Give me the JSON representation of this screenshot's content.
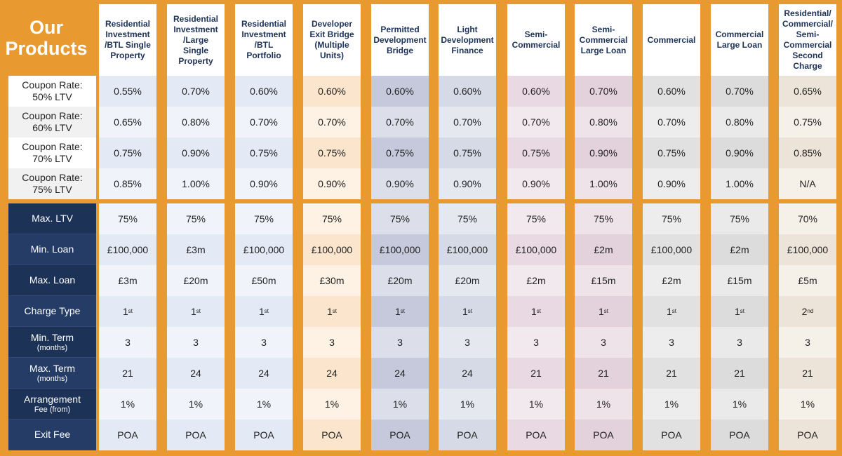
{
  "title": {
    "line1": "Our",
    "line2": "Products"
  },
  "rate_labels": [
    {
      "line1": "Coupon Rate:",
      "line2": "50% LTV"
    },
    {
      "line1": "Coupon Rate:",
      "line2": "60% LTV"
    },
    {
      "line1": "Coupon Rate:",
      "line2": "70% LTV"
    },
    {
      "line1": "Coupon Rate:",
      "line2": "75% LTV"
    }
  ],
  "term_labels": [
    {
      "main": "Max. LTV",
      "sub": ""
    },
    {
      "main": "Min. Loan",
      "sub": ""
    },
    {
      "main": "Max. Loan",
      "sub": ""
    },
    {
      "main": "Charge Type",
      "sub": ""
    },
    {
      "main": "Min. Term",
      "sub": "(months)"
    },
    {
      "main": "Max. Term",
      "sub": "(months)"
    },
    {
      "main": "Arrangement",
      "sub": "Fee (from)"
    },
    {
      "main": "Exit Fee",
      "sub": ""
    }
  ],
  "products": [
    {
      "name": "Residential Investment /BTL Single Property",
      "color_a": "#e3eaf5",
      "color_b": "#f0f4fa",
      "rates": [
        "0.55%",
        "0.65%",
        "0.75%",
        "0.85%"
      ],
      "terms": [
        "75%",
        "£100,000",
        "£3m",
        "1",
        "3",
        "21",
        "1%",
        "POA"
      ],
      "charge_sup": "st"
    },
    {
      "name": "Residential Investment /Large Single Property",
      "color_a": "#e3eaf5",
      "color_b": "#f0f4fa",
      "rates": [
        "0.70%",
        "0.80%",
        "0.90%",
        "1.00%"
      ],
      "terms": [
        "75%",
        "£3m",
        "£20m",
        "1",
        "3",
        "24",
        "1%",
        "POA"
      ],
      "charge_sup": "st"
    },
    {
      "name": "Residential Investment /BTL Portfolio",
      "color_a": "#e3eaf5",
      "color_b": "#f0f4fa",
      "rates": [
        "0.60%",
        "0.70%",
        "0.75%",
        "0.90%"
      ],
      "terms": [
        "75%",
        "£100,000",
        "£50m",
        "1",
        "3",
        "24",
        "1%",
        "POA"
      ],
      "charge_sup": "st"
    },
    {
      "name": "Developer Exit Bridge (Multiple Units)",
      "color_a": "#fbe6cd",
      "color_b": "#fdf2e4",
      "rates": [
        "0.60%",
        "0.70%",
        "0.75%",
        "0.90%"
      ],
      "terms": [
        "75%",
        "£100,000",
        "£30m",
        "1",
        "3",
        "24",
        "1%",
        "POA"
      ],
      "charge_sup": "st"
    },
    {
      "name": "Permitted Development Bridge",
      "color_a": "#c5c9db",
      "color_b": "#dcdfea",
      "rates": [
        "0.60%",
        "0.70%",
        "0.75%",
        "0.90%"
      ],
      "terms": [
        "75%",
        "£100,000",
        "£20m",
        "1",
        "3",
        "24",
        "1%",
        "POA"
      ],
      "charge_sup": "st"
    },
    {
      "name": "Light Development Finance",
      "color_a": "#d6d9e6",
      "color_b": "#e6e8f0",
      "rates": [
        "0.60%",
        "0.70%",
        "0.75%",
        "0.90%"
      ],
      "terms": [
        "75%",
        "£100,000",
        "£20m",
        "1",
        "3",
        "24",
        "1%",
        "POA"
      ],
      "charge_sup": "st"
    },
    {
      "name": "Semi-Commercial",
      "color_a": "#e8d9e2",
      "color_b": "#f2e9ee",
      "rates": [
        "0.60%",
        "0.70%",
        "0.75%",
        "0.90%"
      ],
      "terms": [
        "75%",
        "£100,000",
        "£2m",
        "1",
        "3",
        "21",
        "1%",
        "POA"
      ],
      "charge_sup": "st"
    },
    {
      "name": "Semi-Commercial Large Loan",
      "color_a": "#e3d1dc",
      "color_b": "#efe3ea",
      "rates": [
        "0.70%",
        "0.80%",
        "0.90%",
        "1.00%"
      ],
      "terms": [
        "75%",
        "£2m",
        "£15m",
        "1",
        "3",
        "21",
        "1%",
        "POA"
      ],
      "charge_sup": "st"
    },
    {
      "name": "Commercial",
      "color_a": "#e1e1e1",
      "color_b": "#ededed",
      "rates": [
        "0.60%",
        "0.70%",
        "0.75%",
        "0.90%"
      ],
      "terms": [
        "75%",
        "£100,000",
        "£2m",
        "1",
        "3",
        "21",
        "1%",
        "POA"
      ],
      "charge_sup": "st"
    },
    {
      "name": "Commercial Large Loan",
      "color_a": "#dcdcdc",
      "color_b": "#eaeaea",
      "rates": [
        "0.70%",
        "0.80%",
        "0.90%",
        "1.00%"
      ],
      "terms": [
        "75%",
        "£2m",
        "£15m",
        "1",
        "3",
        "21",
        "1%",
        "POA"
      ],
      "charge_sup": "st"
    },
    {
      "name": "Residential/ Commercial/ Semi-Commercial Second Charge",
      "color_a": "#ece4d8",
      "color_b": "#f5f0e8",
      "rates": [
        "0.65%",
        "0.75%",
        "0.85%",
        "N/A"
      ],
      "terms": [
        "70%",
        "£100,000",
        "£5m",
        "2",
        "3",
        "21",
        "1%",
        "POA"
      ],
      "charge_sup": "nd"
    }
  ]
}
